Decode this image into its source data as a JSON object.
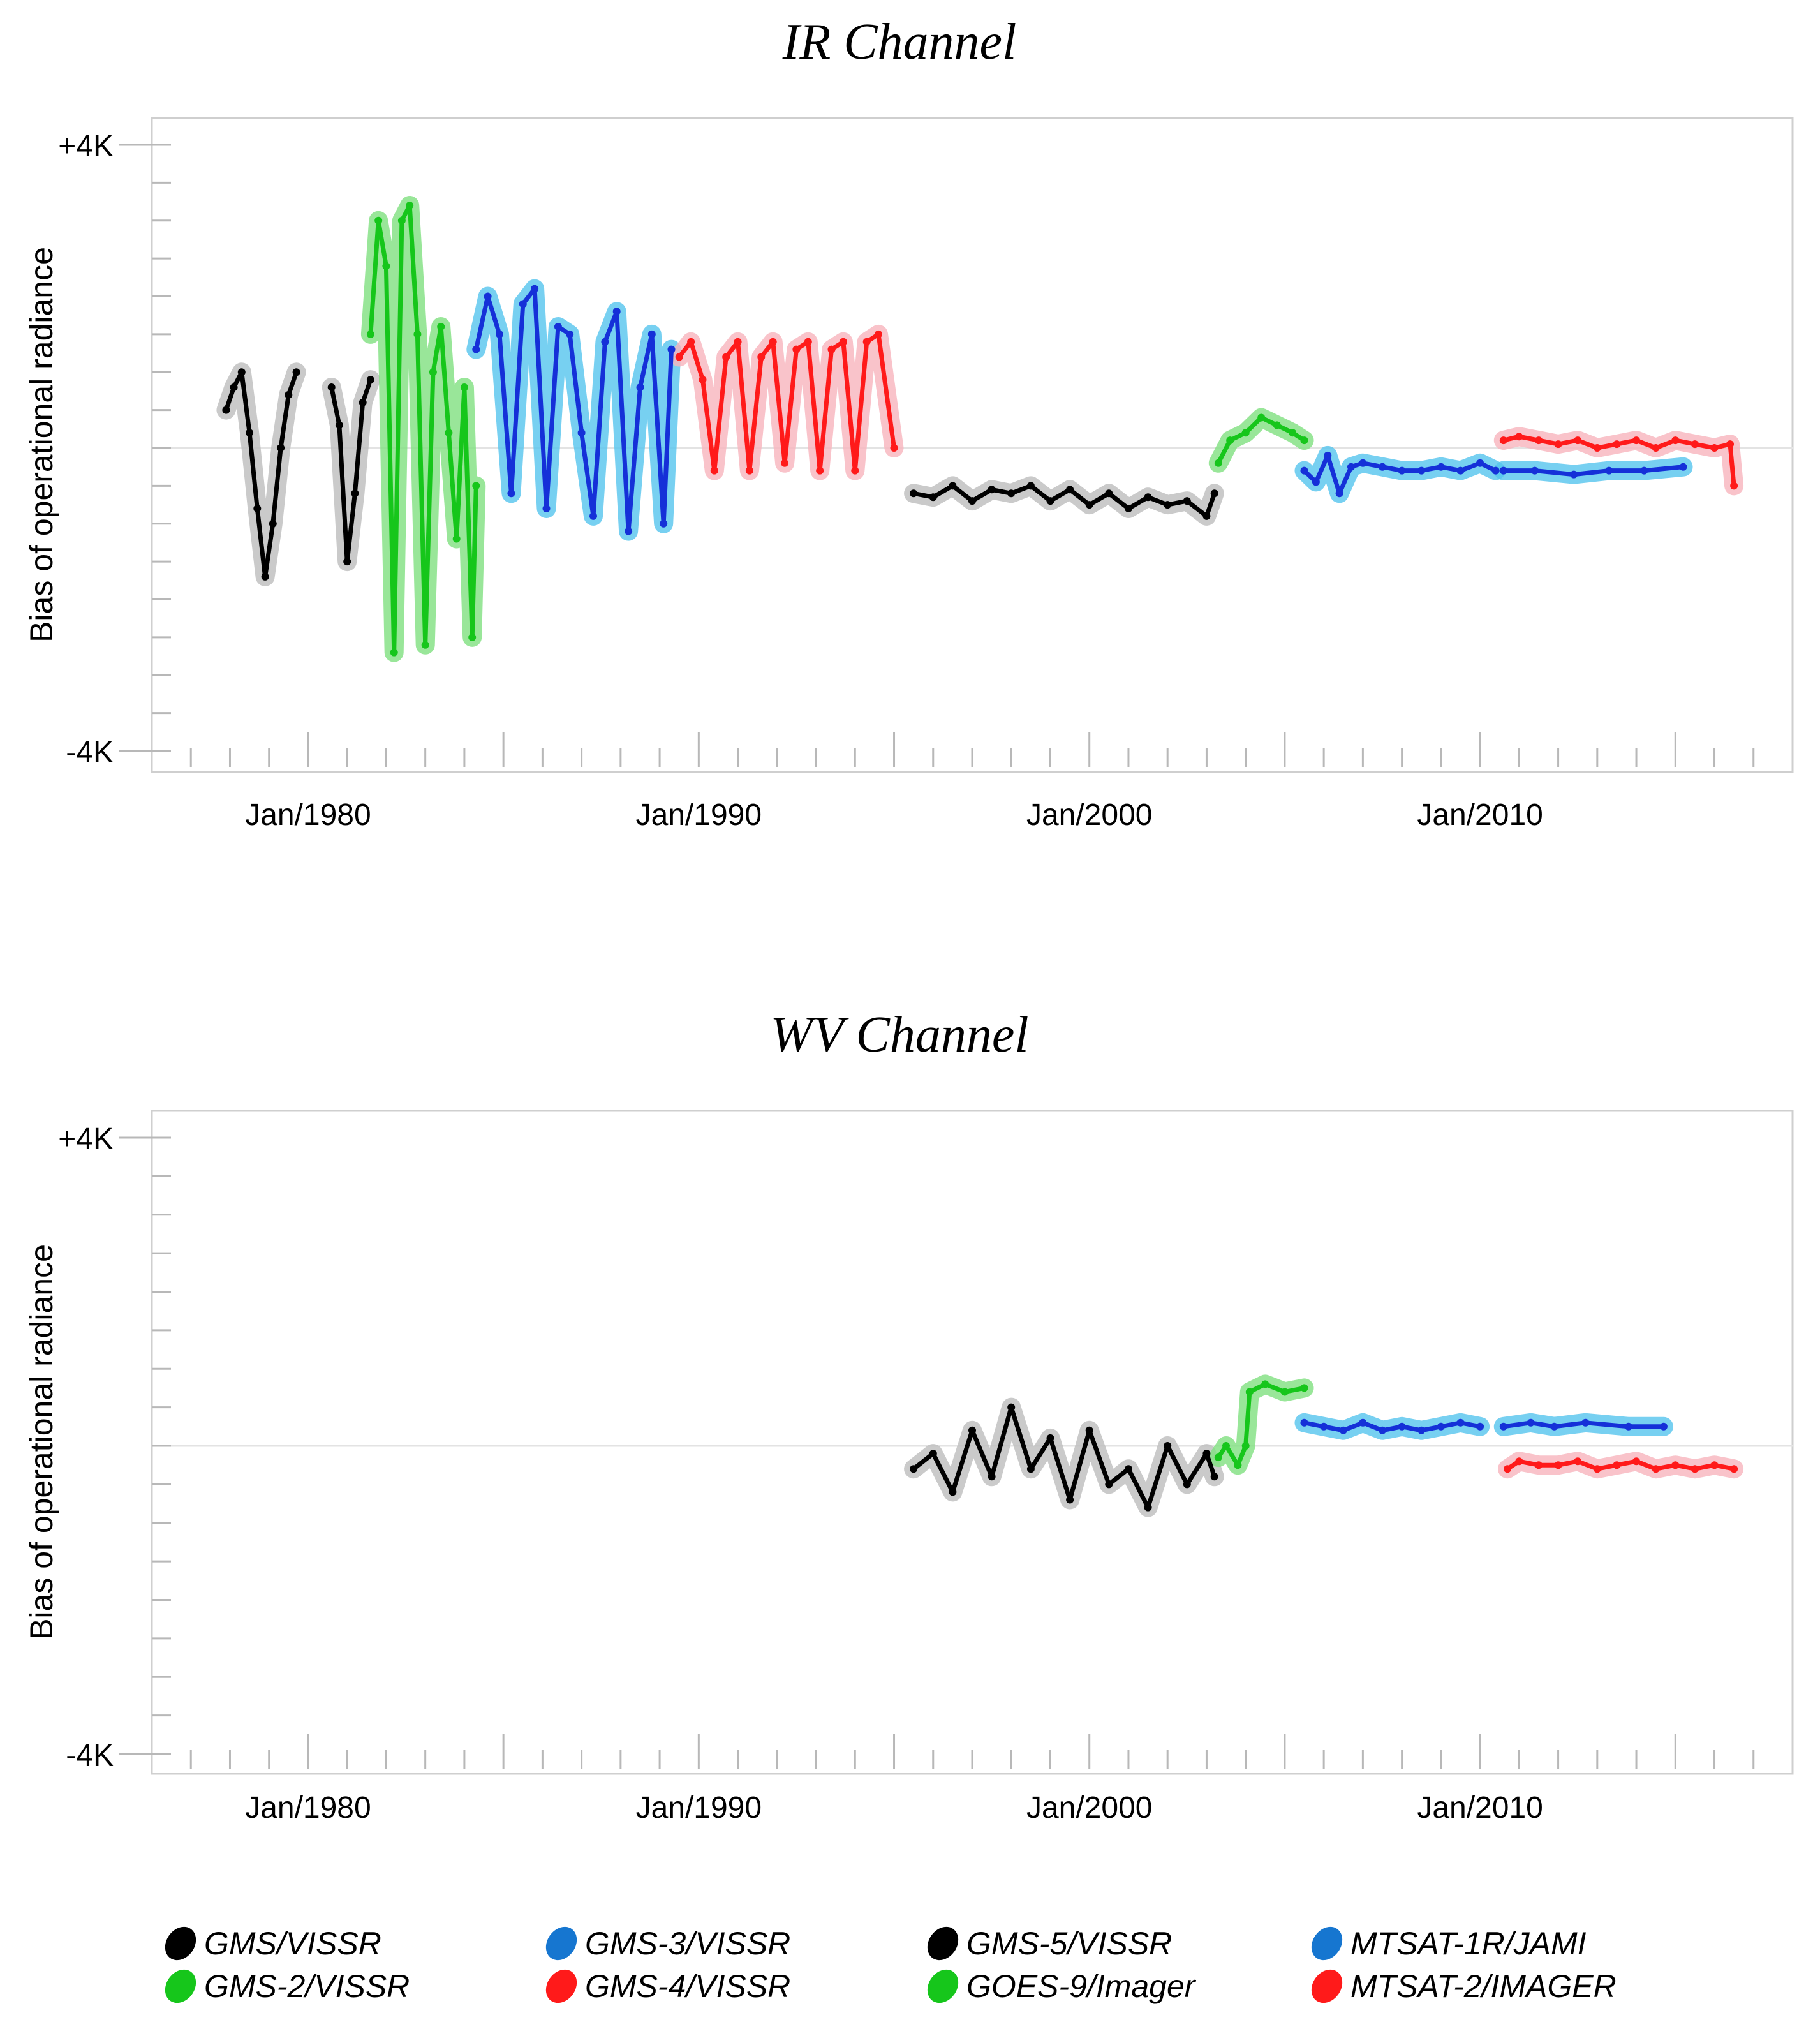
{
  "chart_data": {
    "type": "scatter",
    "x_axis": {
      "tick_labels": [
        "Jan/1980",
        "Jan/1990",
        "Jan/2000",
        "Jan/2010"
      ],
      "xlim": [
        1976,
        2018
      ]
    },
    "y_axis": {
      "label": "Bias of operational radiance",
      "tick_labels": [
        "+4K",
        "-4K"
      ],
      "ylim": [
        -4,
        4
      ],
      "unit": "K"
    },
    "series_styles": [
      {
        "name": "GMS/VISSR",
        "color": "#000000",
        "band_color": "#bdbdbd"
      },
      {
        "name": "GMS-2/VISSR",
        "color": "#16c61b",
        "band_color": "#7fe07f"
      },
      {
        "name": "GMS-3/VISSR",
        "color": "#1530d8",
        "band_color": "#55c4ee"
      },
      {
        "name": "GMS-4/VISSR",
        "color": "#ff1a1a",
        "band_color": "#f7b4bd"
      },
      {
        "name": "GMS-5/VISSR",
        "color": "#000000",
        "band_color": "#bdbdbd"
      },
      {
        "name": "GOES-9/Imager",
        "color": "#16c61b",
        "band_color": "#7fe07f"
      },
      {
        "name": "MTSAT-1R/JAMI",
        "color": "#1530d8",
        "band_color": "#55c4ee"
      },
      {
        "name": "MTSAT-2/IMAGER",
        "color": "#ff1a1a",
        "band_color": "#f7b4bd"
      }
    ],
    "panels": [
      {
        "title": "IR Channel",
        "series": [
          {
            "name": "GMS/VISSR",
            "segments": [
              {
                "x": [
                  1977.9,
                  1978.1,
                  1978.3,
                  1978.5,
                  1978.7,
                  1978.9,
                  1979.1,
                  1979.3,
                  1979.5,
                  1979.7
                ],
                "y": [
                  0.5,
                  0.8,
                  1.0,
                  0.2,
                  -0.8,
                  -1.7,
                  -1.0,
                  0.0,
                  0.7,
                  1.0
                ]
              },
              {
                "x": [
                  1980.6,
                  1980.8,
                  1981.0,
                  1981.2,
                  1981.4,
                  1981.6
                ],
                "y": [
                  0.8,
                  0.3,
                  -1.5,
                  -0.6,
                  0.6,
                  0.9
                ]
              }
            ]
          },
          {
            "name": "GMS-2/VISSR",
            "segments": [
              {
                "x": [
                  1981.6,
                  1981.8,
                  1982.0,
                  1982.2,
                  1982.4,
                  1982.6,
                  1982.8,
                  1983.0,
                  1983.2,
                  1983.4,
                  1983.6,
                  1983.8,
                  1984.0,
                  1984.2,
                  1984.3
                ],
                "y": [
                  1.5,
                  3.0,
                  2.4,
                  -2.7,
                  3.0,
                  3.2,
                  1.5,
                  -2.6,
                  1.0,
                  1.6,
                  0.2,
                  -1.2,
                  0.8,
                  -2.5,
                  -0.5
                ]
              }
            ]
          },
          {
            "name": "GMS-3/VISSR",
            "segments": [
              {
                "x": [
                  1984.3,
                  1984.6,
                  1984.9,
                  1985.2,
                  1985.5,
                  1985.8,
                  1986.1,
                  1986.4,
                  1986.7,
                  1987.0,
                  1987.3,
                  1987.6,
                  1987.9,
                  1988.2,
                  1988.5,
                  1988.8,
                  1989.1,
                  1989.3
                ],
                "y": [
                  1.3,
                  2.0,
                  1.5,
                  -0.6,
                  1.9,
                  2.1,
                  -0.8,
                  1.6,
                  1.5,
                  0.2,
                  -0.9,
                  1.4,
                  1.8,
                  -1.1,
                  0.8,
                  1.5,
                  -1.0,
                  1.3
                ]
              }
            ]
          },
          {
            "name": "GMS-4/VISSR",
            "segments": [
              {
                "x": [
                  1989.5,
                  1989.8,
                  1990.1,
                  1990.4,
                  1990.7,
                  1991.0,
                  1991.3,
                  1991.6,
                  1991.9,
                  1992.2,
                  1992.5,
                  1992.8,
                  1993.1,
                  1993.4,
                  1993.7,
                  1994.0,
                  1994.3,
                  1994.6,
                  1995.0
                ],
                "y": [
                  1.2,
                  1.4,
                  0.9,
                  -0.3,
                  1.2,
                  1.4,
                  -0.3,
                  1.2,
                  1.4,
                  -0.2,
                  1.3,
                  1.4,
                  -0.3,
                  1.3,
                  1.4,
                  -0.3,
                  1.4,
                  1.5,
                  0.0
                ]
              }
            ]
          },
          {
            "name": "GMS-5/VISSR",
            "segments": [
              {
                "x": [
                  1995.5,
                  1996.0,
                  1996.5,
                  1997.0,
                  1997.5,
                  1998.0,
                  1998.5,
                  1999.0,
                  1999.5,
                  2000.0,
                  2000.5,
                  2001.0,
                  2001.5,
                  2002.0,
                  2002.5,
                  2003.0,
                  2003.2
                ],
                "y": [
                  -0.6,
                  -0.65,
                  -0.5,
                  -0.7,
                  -0.55,
                  -0.6,
                  -0.5,
                  -0.7,
                  -0.55,
                  -0.75,
                  -0.6,
                  -0.8,
                  -0.65,
                  -0.75,
                  -0.7,
                  -0.9,
                  -0.6
                ]
              }
            ]
          },
          {
            "name": "GOES-9/Imager",
            "segments": [
              {
                "x": [
                  2003.3,
                  2003.6,
                  2004.0,
                  2004.4,
                  2004.8,
                  2005.2,
                  2005.5
                ],
                "y": [
                  -0.2,
                  0.1,
                  0.2,
                  0.4,
                  0.3,
                  0.2,
                  0.1
                ]
              }
            ]
          },
          {
            "name": "MTSAT-1R/JAMI",
            "segments": [
              {
                "x": [
                  2005.5,
                  2005.8,
                  2006.1,
                  2006.4,
                  2006.7,
                  2007.0,
                  2007.5,
                  2008.0,
                  2008.5,
                  2009.0,
                  2009.5,
                  2010.0,
                  2010.4
                ],
                "y": [
                  -0.3,
                  -0.45,
                  -0.1,
                  -0.6,
                  -0.25,
                  -0.2,
                  -0.25,
                  -0.3,
                  -0.3,
                  -0.25,
                  -0.3,
                  -0.2,
                  -0.3
                ]
              },
              {
                "x": [
                  2010.6,
                  2011.4,
                  2012.4,
                  2013.3,
                  2014.2,
                  2015.2
                ],
                "y": [
                  -0.3,
                  -0.3,
                  -0.35,
                  -0.3,
                  -0.3,
                  -0.25
                ]
              }
            ]
          },
          {
            "name": "MTSAT-2/IMAGER",
            "segments": [
              {
                "x": [
                  2010.6,
                  2011.0,
                  2011.5,
                  2012.0,
                  2012.5,
                  2013.0,
                  2013.5,
                  2014.0,
                  2014.5,
                  2015.0,
                  2015.5,
                  2016.0,
                  2016.4,
                  2016.5
                ],
                "y": [
                  0.1,
                  0.15,
                  0.1,
                  0.05,
                  0.1,
                  0.0,
                  0.05,
                  0.1,
                  0.0,
                  0.1,
                  0.05,
                  0.0,
                  0.05,
                  -0.5
                ]
              }
            ]
          }
        ]
      },
      {
        "title": "WV Channel",
        "series": [
          {
            "name": "GMS-5/VISSR",
            "segments": [
              {
                "x": [
                  1995.5,
                  1996.0,
                  1996.5,
                  1997.0,
                  1997.5,
                  1998.0,
                  1998.5,
                  1999.0,
                  1999.5,
                  2000.0,
                  2000.5,
                  2001.0,
                  2001.5,
                  2002.0,
                  2002.5,
                  2003.0,
                  2003.2
                ],
                "y": [
                  -0.3,
                  -0.1,
                  -0.6,
                  0.2,
                  -0.4,
                  0.5,
                  -0.3,
                  0.1,
                  -0.7,
                  0.2,
                  -0.5,
                  -0.3,
                  -0.8,
                  0.0,
                  -0.5,
                  -0.1,
                  -0.4
                ]
              }
            ]
          },
          {
            "name": "GOES-9/Imager",
            "segments": [
              {
                "x": [
                  2003.3,
                  2003.5,
                  2003.8,
                  2004.0,
                  2004.1,
                  2004.5,
                  2005.0,
                  2005.5
                ],
                "y": [
                  -0.15,
                  0.0,
                  -0.25,
                  0.0,
                  0.7,
                  0.8,
                  0.7,
                  0.75
                ]
              }
            ]
          },
          {
            "name": "MTSAT-1R/JAMI",
            "segments": [
              {
                "x": [
                  2005.5,
                  2006.0,
                  2006.5,
                  2007.0,
                  2007.5,
                  2008.0,
                  2008.5,
                  2009.0,
                  2009.5,
                  2010.0
                ],
                "y": [
                  0.3,
                  0.25,
                  0.2,
                  0.3,
                  0.2,
                  0.25,
                  0.2,
                  0.25,
                  0.3,
                  0.25
                ]
              },
              {
                "x": [
                  2010.6,
                  2011.3,
                  2011.9,
                  2012.7,
                  2013.8,
                  2014.7
                ],
                "y": [
                  0.25,
                  0.3,
                  0.25,
                  0.3,
                  0.25,
                  0.25
                ]
              }
            ]
          },
          {
            "name": "MTSAT-2/IMAGER",
            "segments": [
              {
                "x": [
                  2010.7,
                  2011.0,
                  2011.5,
                  2012.0,
                  2012.5,
                  2013.0,
                  2013.5,
                  2014.0,
                  2014.5,
                  2015.0,
                  2015.5,
                  2016.0,
                  2016.5
                ],
                "y": [
                  -0.3,
                  -0.2,
                  -0.25,
                  -0.25,
                  -0.2,
                  -0.3,
                  -0.25,
                  -0.2,
                  -0.3,
                  -0.25,
                  -0.3,
                  -0.25,
                  -0.3
                ]
              }
            ]
          }
        ]
      }
    ],
    "legend": [
      {
        "label": "GMS/VISSR",
        "color": "#000000"
      },
      {
        "label": "GMS-2/VISSR",
        "color": "#16c61b"
      },
      {
        "label": "GMS-3/VISSR",
        "color": "#1676d0"
      },
      {
        "label": "GMS-4/VISSR",
        "color": "#ff1a1a"
      },
      {
        "label": "GMS-5/VISSR",
        "color": "#000000"
      },
      {
        "label": "GOES-9/Imager",
        "color": "#16c61b"
      },
      {
        "label": "MTSAT-1R/JAMI",
        "color": "#1676d0"
      },
      {
        "label": "MTSAT-2/IMAGER",
        "color": "#ff1a1a"
      }
    ]
  }
}
